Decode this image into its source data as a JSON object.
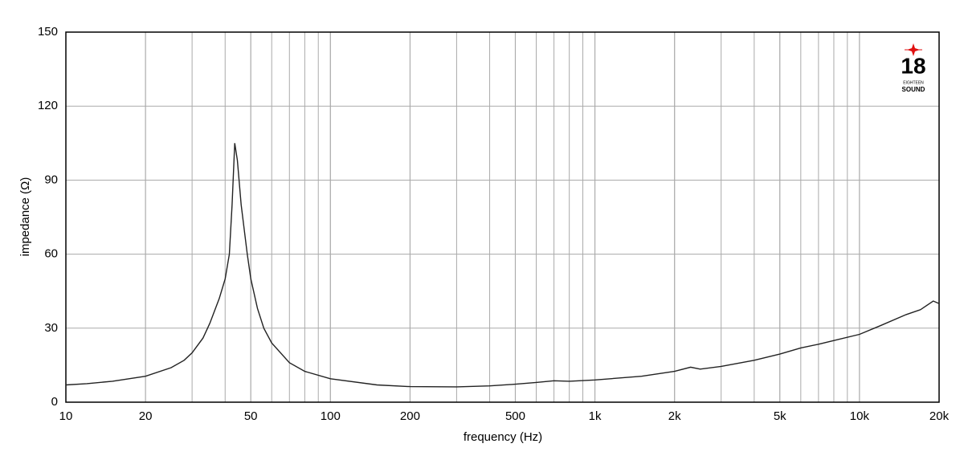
{
  "chart_data": {
    "type": "line",
    "x_label": "frequency (Hz)",
    "y_label": "impedance (Ω)",
    "logo": {
      "number": "18",
      "line1": "EIGHTEEN",
      "line2": "SOUND"
    },
    "x_scale": "log",
    "grid": true,
    "minor_grid": true,
    "xlim": [
      10,
      20000
    ],
    "ylim": [
      0,
      150
    ],
    "xticks": [
      10,
      20,
      50,
      100,
      200,
      500,
      {
        "value": 1000,
        "label": "1k"
      },
      {
        "value": 2000,
        "label": "2k"
      },
      {
        "value": 5000,
        "label": "5k"
      },
      {
        "value": 10000,
        "label": "10k"
      },
      {
        "value": 20000,
        "label": "20k"
      }
    ],
    "yticks": [
      0,
      30,
      60,
      90,
      120,
      150
    ],
    "x": [
      10,
      12,
      15,
      20,
      25,
      28,
      30,
      33,
      35,
      38,
      40,
      41.5,
      42.5,
      43.5,
      44.5,
      46,
      48.5,
      50,
      53,
      56,
      60,
      70,
      80,
      100,
      150,
      200,
      300,
      400,
      500,
      600,
      700,
      800,
      1000,
      1500,
      2000,
      2300,
      2500,
      3000,
      4000,
      5000,
      6000,
      7000,
      8000,
      10000,
      12000,
      15000,
      17000,
      19000,
      20000
    ],
    "series": [
      {
        "name": "impedance",
        "color": "#222222",
        "values": [
          7,
          7.5,
          8.5,
          10.5,
          14,
          17,
          20,
          26,
          32,
          42,
          50,
          60,
          80,
          105,
          98,
          80,
          60,
          50,
          38,
          30,
          24,
          16,
          12.5,
          9.5,
          7,
          6.3,
          6.2,
          6.6,
          7.3,
          8,
          8.7,
          8.5,
          9,
          10.5,
          12.5,
          14.2,
          13.4,
          14.5,
          17,
          19.5,
          22,
          23.5,
          25,
          27.5,
          31,
          35.5,
          37.5,
          41,
          40
        ]
      }
    ]
  }
}
